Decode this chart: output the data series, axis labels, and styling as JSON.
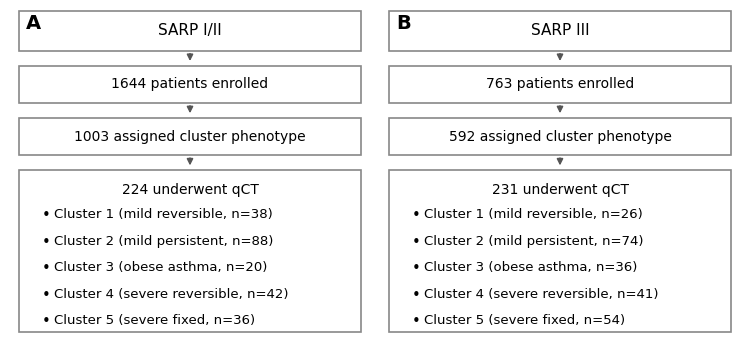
{
  "panel_A": {
    "label": "A",
    "title": "SARP I/II",
    "box1": "1644 patients enrolled",
    "box2": "1003 assigned cluster phenotype",
    "box3_title": "224 underwent qCT",
    "box3_bullets": [
      "Cluster 1 (mild reversible, n=38)",
      "Cluster 2 (mild persistent, n=88)",
      "Cluster 3 (obese asthma, n=20)",
      "Cluster 4 (severe reversible, n=42)",
      "Cluster 5 (severe fixed, n=36)"
    ]
  },
  "panel_B": {
    "label": "B",
    "title": "SARP III",
    "box1": "763 patients enrolled",
    "box2": "592 assigned cluster phenotype",
    "box3_title": "231 underwent qCT",
    "box3_bullets": [
      "Cluster 1 (mild reversible, n=26)",
      "Cluster 2 (mild persistent, n=74)",
      "Cluster 3 (obese asthma, n=36)",
      "Cluster 4 (severe reversible, n=41)",
      "Cluster 5 (severe fixed, n=54)"
    ]
  },
  "bg_color": "#ffffff",
  "box_edge_color": "#888888",
  "box_face_color": "#ffffff",
  "text_color": "#000000",
  "arrow_color": "#555555",
  "label_fontsize": 14,
  "title_fontsize": 11,
  "body_fontsize": 10,
  "bullet_fontsize": 9.5
}
